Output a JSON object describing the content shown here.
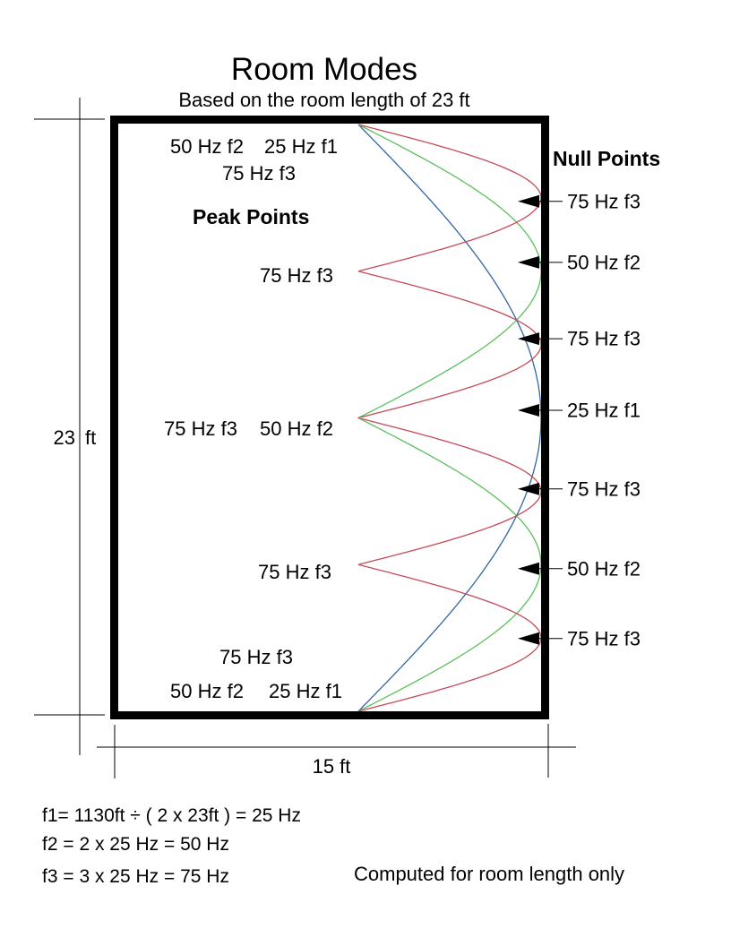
{
  "title": "Room Modes",
  "subtitle": "Based on the room length of 23 ft",
  "length_dimension": {
    "value": "23",
    "unit": "ft"
  },
  "width_dimension": "15 ft",
  "peak_points": {
    "heading": "Peak Points",
    "labels": [
      "50 Hz f2",
      "25 Hz f1",
      "75 Hz f3",
      "75 Hz f3",
      "75 Hz f3",
      "50 Hz f2",
      "75 Hz f3",
      "75 Hz f3",
      "50 Hz f2",
      "25 Hz f1"
    ]
  },
  "null_points": {
    "heading": "Null Points"
  },
  "formulas": {
    "f1": "f1= 1130ft ÷ ( 2 x 23ft ) = 25 Hz",
    "f2": "f2 = 2 x 25 Hz = 50 Hz",
    "f3": "f3 = 3 x 25 Hz = 75 Hz"
  },
  "footnote": "Computed for room length only",
  "chart_data": {
    "type": "line",
    "title": "Room Modes",
    "subtitle": "Based on the room length of 23 ft",
    "room_length_ft": 23,
    "room_width_ft": 15,
    "axis": "vertical position along room length, horizontal displacement = mode amplitude (right wall = null)",
    "series": [
      {
        "name": "25 Hz f1",
        "mode": "f1",
        "frequency_hz": 25,
        "color": "#2f66a3",
        "lobes": 1,
        "null_positions_fraction": [
          0.5
        ],
        "peak_positions_fraction": [
          0,
          1
        ]
      },
      {
        "name": "50 Hz f2",
        "mode": "f2",
        "frequency_hz": 50,
        "color": "#5bbf5b",
        "lobes": 2,
        "null_positions_fraction": [
          0.25,
          0.75
        ],
        "peak_positions_fraction": [
          0,
          0.5,
          1
        ]
      },
      {
        "name": "75 Hz f3",
        "mode": "f3",
        "frequency_hz": 75,
        "color": "#c44b55",
        "lobes": 4,
        "null_positions_fraction": [
          0.125,
          0.375,
          0.625,
          0.875
        ],
        "peak_positions_fraction": [
          0,
          0.25,
          0.5,
          0.75,
          1
        ]
      }
    ],
    "null_markers": [
      {
        "label": "75 Hz f3",
        "pos": 0.131
      },
      {
        "label": "50 Hz f2",
        "pos": 0.235
      },
      {
        "label": "75 Hz f3",
        "pos": 0.365
      },
      {
        "label": "25 Hz f1",
        "pos": 0.487
      },
      {
        "label": "75 Hz f3",
        "pos": 0.621
      },
      {
        "label": "50 Hz f2",
        "pos": 0.757
      },
      {
        "label": "75 Hz f3",
        "pos": 0.876
      }
    ]
  }
}
